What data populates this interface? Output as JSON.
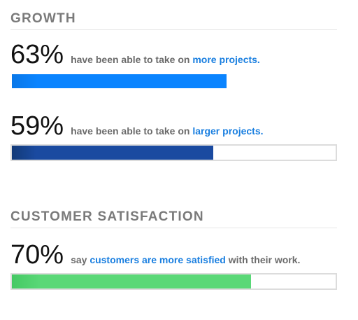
{
  "colors": {
    "section_title": "#7a7a7a",
    "highlight_blue": "#1a7fe0",
    "track_border": "#dcdcdc"
  },
  "sections": [
    {
      "title": "GROWTH",
      "stats": [
        {
          "percent_label": "63%",
          "text_before": "have been able to take on",
          "highlight": "more projects.",
          "text_after": "",
          "fill_fraction": 0.663,
          "show_track": false,
          "fill_color_start": "#0a78e8",
          "fill_color_end": "#0a84ff"
        },
        {
          "percent_label": "59%",
          "text_before": "have been able to take on",
          "highlight": "larger projects.",
          "text_after": "",
          "fill_fraction": 0.621,
          "show_track": true,
          "fill_color_start": "#123a78",
          "fill_color_end": "#1a4aa0"
        }
      ]
    },
    {
      "title": "CUSTOMER SATISFACTION",
      "stats": [
        {
          "percent_label": "70%",
          "text_before": "say",
          "highlight": "customers are more satisfied",
          "text_after": "with their work.",
          "fill_fraction": 0.738,
          "show_track": true,
          "fill_color_start": "#45c964",
          "fill_color_end": "#5ad877"
        }
      ]
    }
  ]
}
